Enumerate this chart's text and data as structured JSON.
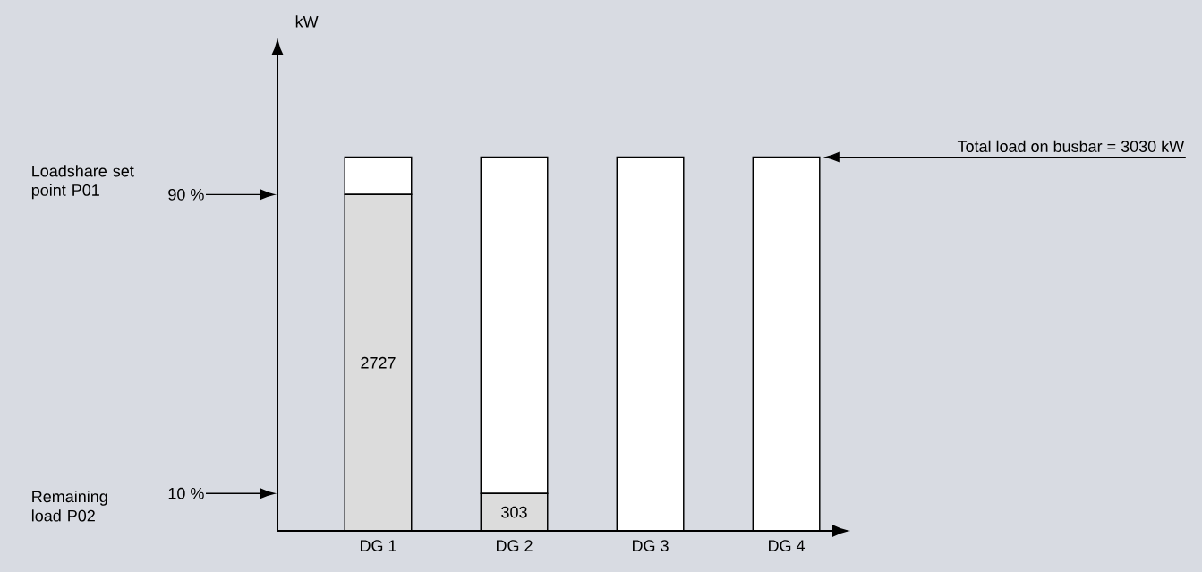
{
  "chart_data": {
    "type": "bar",
    "stacked": true,
    "categories": [
      "DG 1",
      "DG 2",
      "DG 3",
      "DG 4"
    ],
    "series": [
      {
        "color": "#dcdcdc",
        "values": [
          2727,
          303,
          0,
          0
        ],
        "value_labels": [
          "2727",
          "303",
          null,
          null
        ]
      },
      {
        "color": "#ffffff",
        "values": [
          303,
          2727,
          3030,
          3030
        ]
      }
    ],
    "annotations": [
      "Loadshare set point P01",
      "90 %",
      "Remaining load P02",
      "10 %",
      "Total load on busbar = 3030 kW",
      "kW"
    ]
  }
}
